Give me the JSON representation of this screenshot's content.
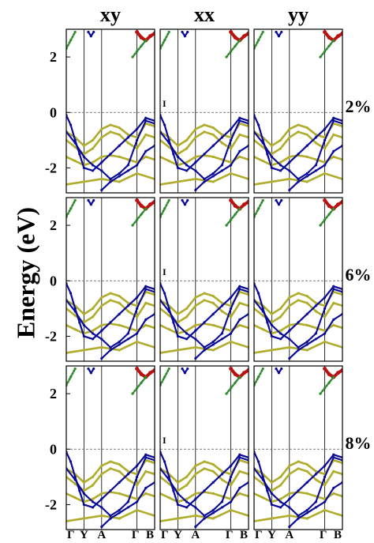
{
  "chart_data": {
    "type": "line",
    "ylabel": "Energy (eV)",
    "columns": [
      "xy",
      "xx",
      "yy"
    ],
    "rows": [
      "2%",
      "6%",
      "8%"
    ],
    "panel_marker": "I",
    "ylim": [
      -2.9,
      3.0
    ],
    "yticks": [
      {
        "v": 2,
        "t": "2"
      },
      {
        "v": 0,
        "t": "0"
      },
      {
        "v": -2,
        "t": "-2"
      }
    ],
    "kpath": [
      {
        "t": "Γ",
        "x": 0.0
      },
      {
        "t": "Y",
        "x": 0.2
      },
      {
        "t": "A",
        "x": 0.4
      },
      {
        "t": "Γ",
        "x": 0.8
      },
      {
        "t": "B",
        "x": 1.0
      }
    ],
    "fermi_level": 0,
    "colors": {
      "yellow": "#b0ac2c",
      "blue": "#0a0a9a",
      "red": "#bb1111",
      "green": "#2d8a2d",
      "grid": "#555555"
    },
    "series": [
      {
        "color": "yellow",
        "x": [
          0,
          0.1,
          0.2,
          0.3,
          0.4,
          0.5,
          0.6,
          0.7,
          0.8,
          0.9,
          1.0
        ],
        "y": [
          -0.7,
          -0.9,
          -1.2,
          -1.0,
          -0.6,
          -0.45,
          -0.55,
          -0.8,
          -0.9,
          -0.4,
          -0.5
        ]
      },
      {
        "color": "yellow",
        "x": [
          0,
          0.1,
          0.2,
          0.3,
          0.4,
          0.5,
          0.6,
          0.7,
          0.8,
          0.9,
          1.0
        ],
        "y": [
          -1.0,
          -1.25,
          -1.5,
          -1.3,
          -0.9,
          -0.7,
          -0.8,
          -1.1,
          -1.3,
          -0.8,
          -0.9
        ]
      },
      {
        "color": "yellow",
        "x": [
          0,
          0.1,
          0.2,
          0.3,
          0.4,
          0.5,
          0.6,
          0.7,
          0.8,
          0.9,
          1.0
        ],
        "y": [
          -1.6,
          -1.75,
          -1.9,
          -1.8,
          -1.6,
          -1.55,
          -1.6,
          -1.7,
          -1.8,
          -1.6,
          -1.7
        ]
      },
      {
        "color": "yellow",
        "x": [
          0,
          0.2,
          0.4,
          0.6,
          0.8,
          1.0
        ],
        "y": [
          -2.6,
          -2.5,
          -2.4,
          -2.5,
          -2.2,
          -2.4
        ]
      },
      {
        "color": "blue",
        "x": [
          0,
          0.05,
          0.1,
          0.15,
          0.2,
          0.3,
          0.4,
          0.5,
          0.6,
          0.7,
          0.8,
          0.9,
          1.0
        ],
        "y": [
          -0.1,
          -0.45,
          -1.0,
          -1.5,
          -2.0,
          -2.1,
          -1.8,
          -1.5,
          -1.2,
          -0.9,
          -0.6,
          -0.2,
          -0.3
        ]
      },
      {
        "color": "blue",
        "x": [
          0,
          0.1,
          0.2,
          0.3,
          0.4,
          0.5,
          0.6,
          0.7,
          0.8,
          0.9,
          1.0
        ],
        "y": [
          -0.7,
          -1.1,
          -1.6,
          -1.9,
          -2.1,
          -2.4,
          -2.2,
          -1.9,
          -1.0,
          -0.3,
          -0.4
        ]
      },
      {
        "color": "blue",
        "x": [
          0.4,
          0.5,
          0.6,
          0.7,
          0.8,
          0.9,
          1.0
        ],
        "y": [
          -2.8,
          -2.5,
          -2.3,
          -2.1,
          -1.9,
          -1.4,
          -1.2
        ]
      },
      {
        "color": "red",
        "x": [
          0.8,
          0.85,
          0.9,
          0.95,
          1.0
        ],
        "y": [
          2.9,
          2.7,
          2.6,
          2.75,
          2.85
        ]
      },
      {
        "color": "green",
        "x": [
          0,
          0.05,
          0.1
        ],
        "y": [
          2.3,
          2.6,
          2.9
        ]
      },
      {
        "color": "green",
        "x": [
          0.75,
          0.8,
          0.85,
          0.9
        ],
        "y": [
          2.0,
          2.2,
          2.4,
          2.6
        ]
      },
      {
        "color": "blue",
        "x": [
          0.25,
          0.28,
          0.31
        ],
        "y": [
          2.9,
          2.75,
          2.9
        ]
      }
    ]
  }
}
